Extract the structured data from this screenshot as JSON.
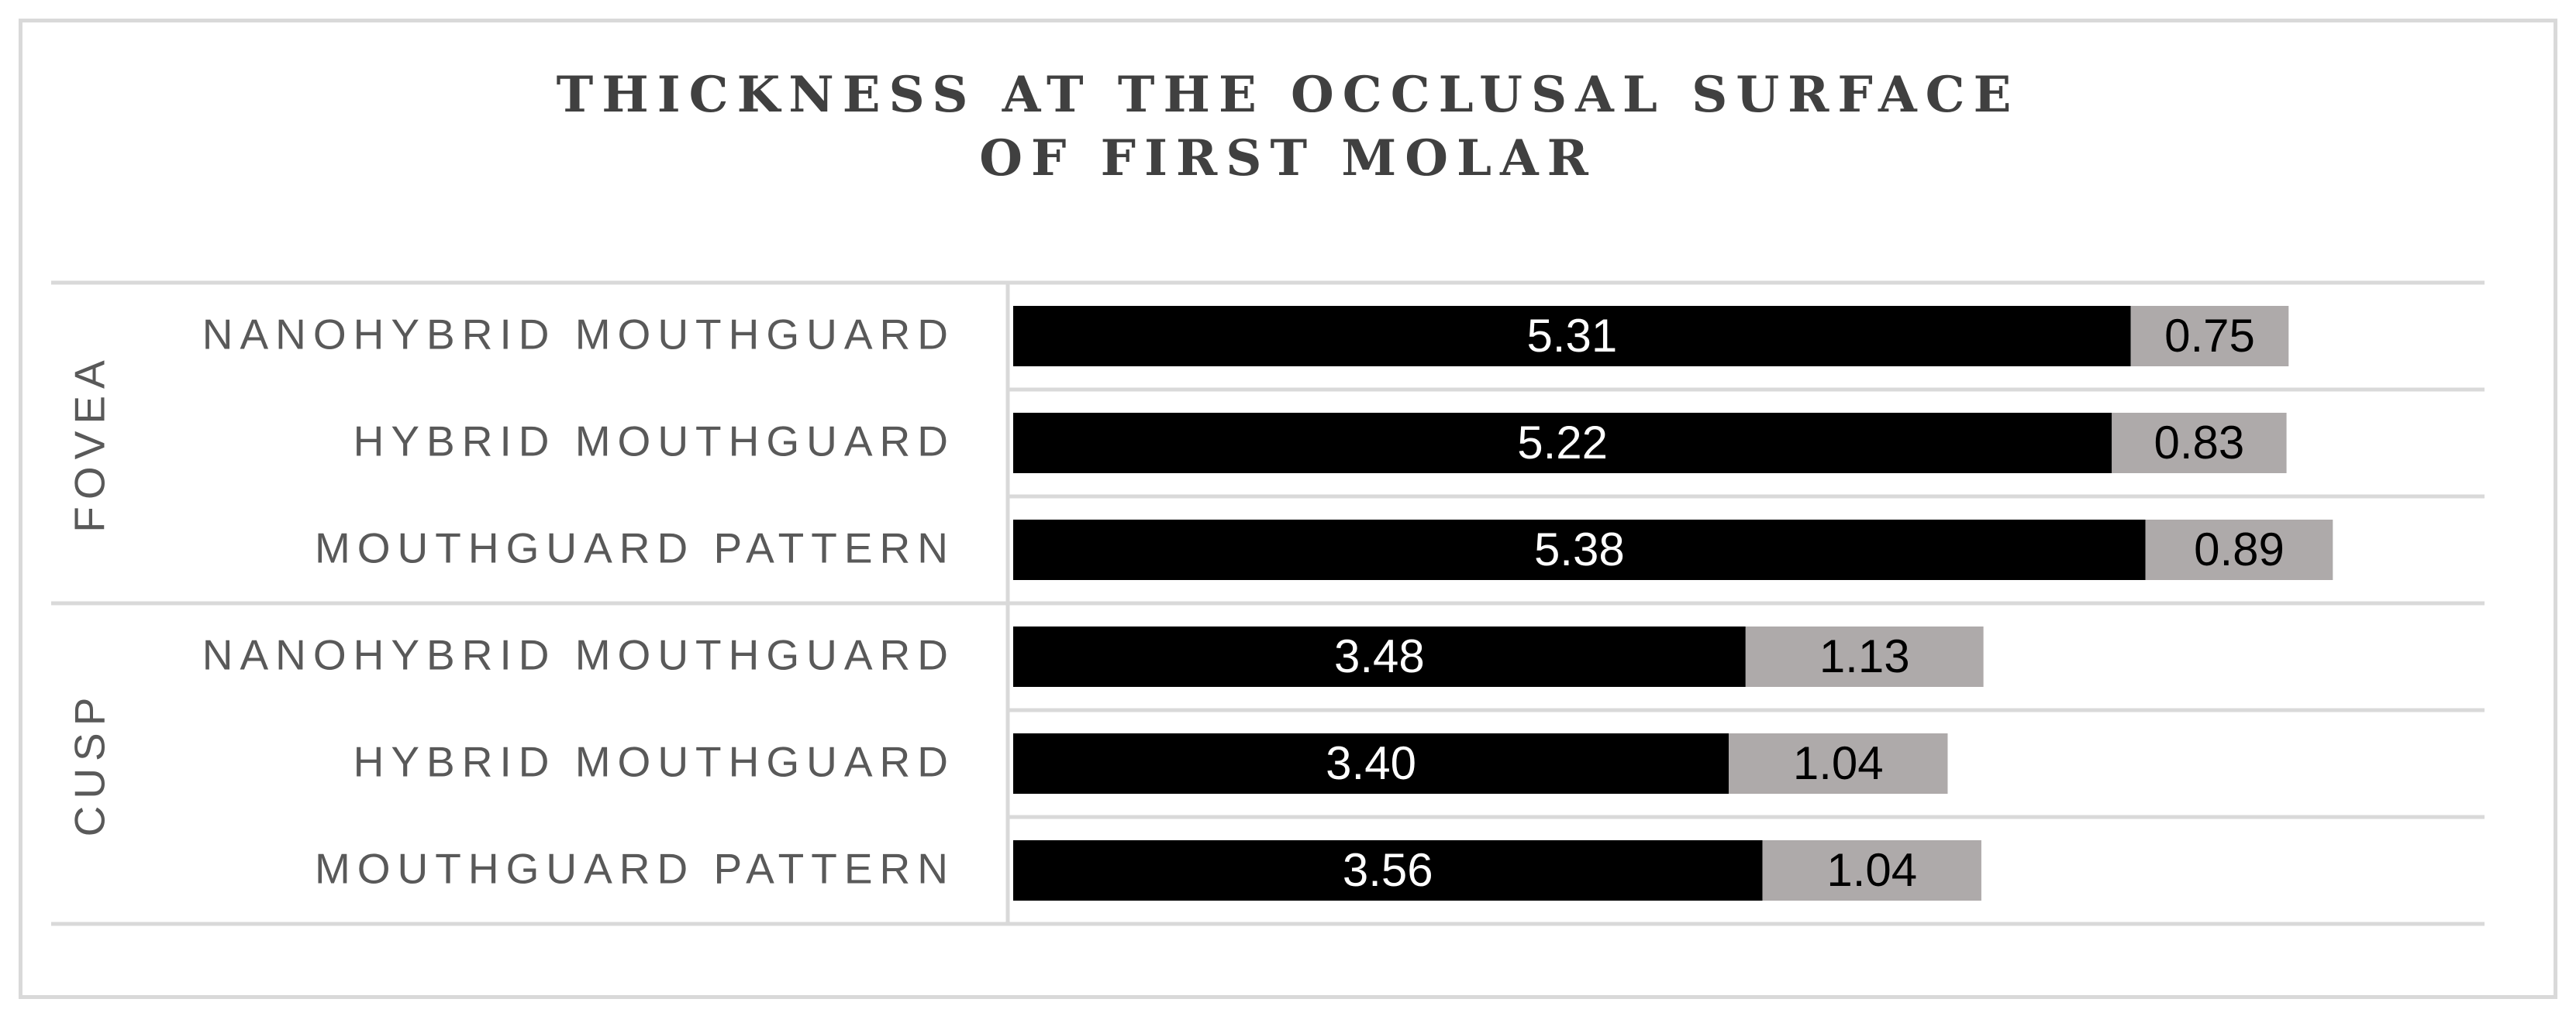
{
  "chart_data": {
    "type": "bar",
    "orientation": "horizontal",
    "stacked": true,
    "title": [
      "THICKNESS AT THE OCCLUSAL SURFACE",
      "OF FIRST MOLAR"
    ],
    "groups": [
      {
        "name": "FOVEA",
        "categories": [
          "NANOHYBRID MOUTHGUARD",
          "HYBRID MOUTHGUARD",
          "MOUTHGUARD PATTERN"
        ]
      },
      {
        "name": "CUSP",
        "categories": [
          "NANOHYBRID MOUTHGUARD",
          "HYBRID MOUTHGUARD",
          "MOUTHGUARD PATTERN"
        ]
      }
    ],
    "series": [
      {
        "color": "#000000",
        "label_color": "#ffffff",
        "values": [
          5.31,
          5.22,
          5.38,
          3.48,
          3.4,
          3.56
        ],
        "labels": [
          "5.31",
          "5.22",
          "5.38",
          "3.48",
          "3.40",
          "3.56"
        ]
      },
      {
        "color": "#aeaaaa",
        "label_color": "#000000",
        "values": [
          0.75,
          0.83,
          0.89,
          1.13,
          1.04,
          1.04
        ],
        "labels": [
          "0.75",
          "0.83",
          "0.89",
          "1.13",
          "1.04",
          "1.04"
        ]
      }
    ],
    "xlim": [
      0,
      7.0
    ],
    "grid": "horizontal separators",
    "legend": "none"
  }
}
